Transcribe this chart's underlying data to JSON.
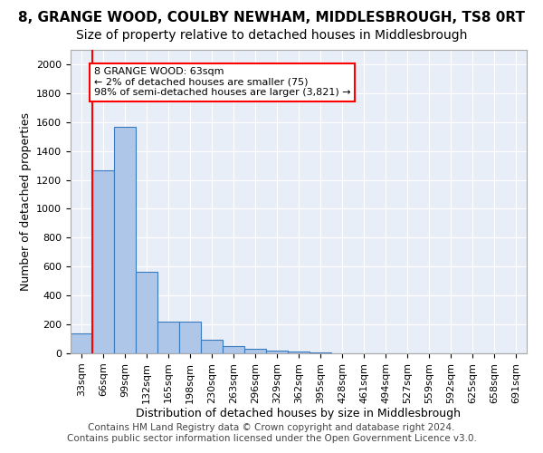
{
  "title": "8, GRANGE WOOD, COULBY NEWHAM, MIDDLESBROUGH, TS8 0RT",
  "subtitle": "Size of property relative to detached houses in Middlesbrough",
  "xlabel": "Distribution of detached houses by size in Middlesbrough",
  "ylabel": "Number of detached properties",
  "bar_values": [
    140,
    1265,
    1565,
    565,
    220,
    220,
    95,
    50,
    30,
    20,
    15,
    5,
    2,
    1,
    1,
    0,
    0,
    0,
    0,
    0,
    0
  ],
  "bar_labels": [
    "33sqm",
    "66sqm",
    "99sqm",
    "132sqm",
    "165sqm",
    "198sqm",
    "230sqm",
    "263sqm",
    "296sqm",
    "329sqm",
    "362sqm",
    "395sqm",
    "428sqm",
    "461sqm",
    "494sqm",
    "527sqm",
    "559sqm",
    "592sqm",
    "625sqm",
    "658sqm",
    "691sqm"
  ],
  "bar_color": "#aec6e8",
  "bar_edge_color": "#3a7abf",
  "annotation_box_text": "8 GRANGE WOOD: 63sqm\n← 2% of detached houses are smaller (75)\n98% of semi-detached houses are larger (3,821) →",
  "annotation_box_color": "white",
  "annotation_box_edge_color": "red",
  "vline_x_index": 1,
  "vline_color": "red",
  "ylim": [
    0,
    2100
  ],
  "yticks": [
    0,
    200,
    400,
    600,
    800,
    1000,
    1200,
    1400,
    1600,
    1800,
    2000
  ],
  "footer_line1": "Contains HM Land Registry data © Crown copyright and database right 2024.",
  "footer_line2": "Contains public sector information licensed under the Open Government Licence v3.0.",
  "background_color": "#e8eef8",
  "grid_color": "white",
  "title_fontsize": 11,
  "subtitle_fontsize": 10,
  "axis_label_fontsize": 9,
  "tick_fontsize": 8,
  "footer_fontsize": 7.5
}
